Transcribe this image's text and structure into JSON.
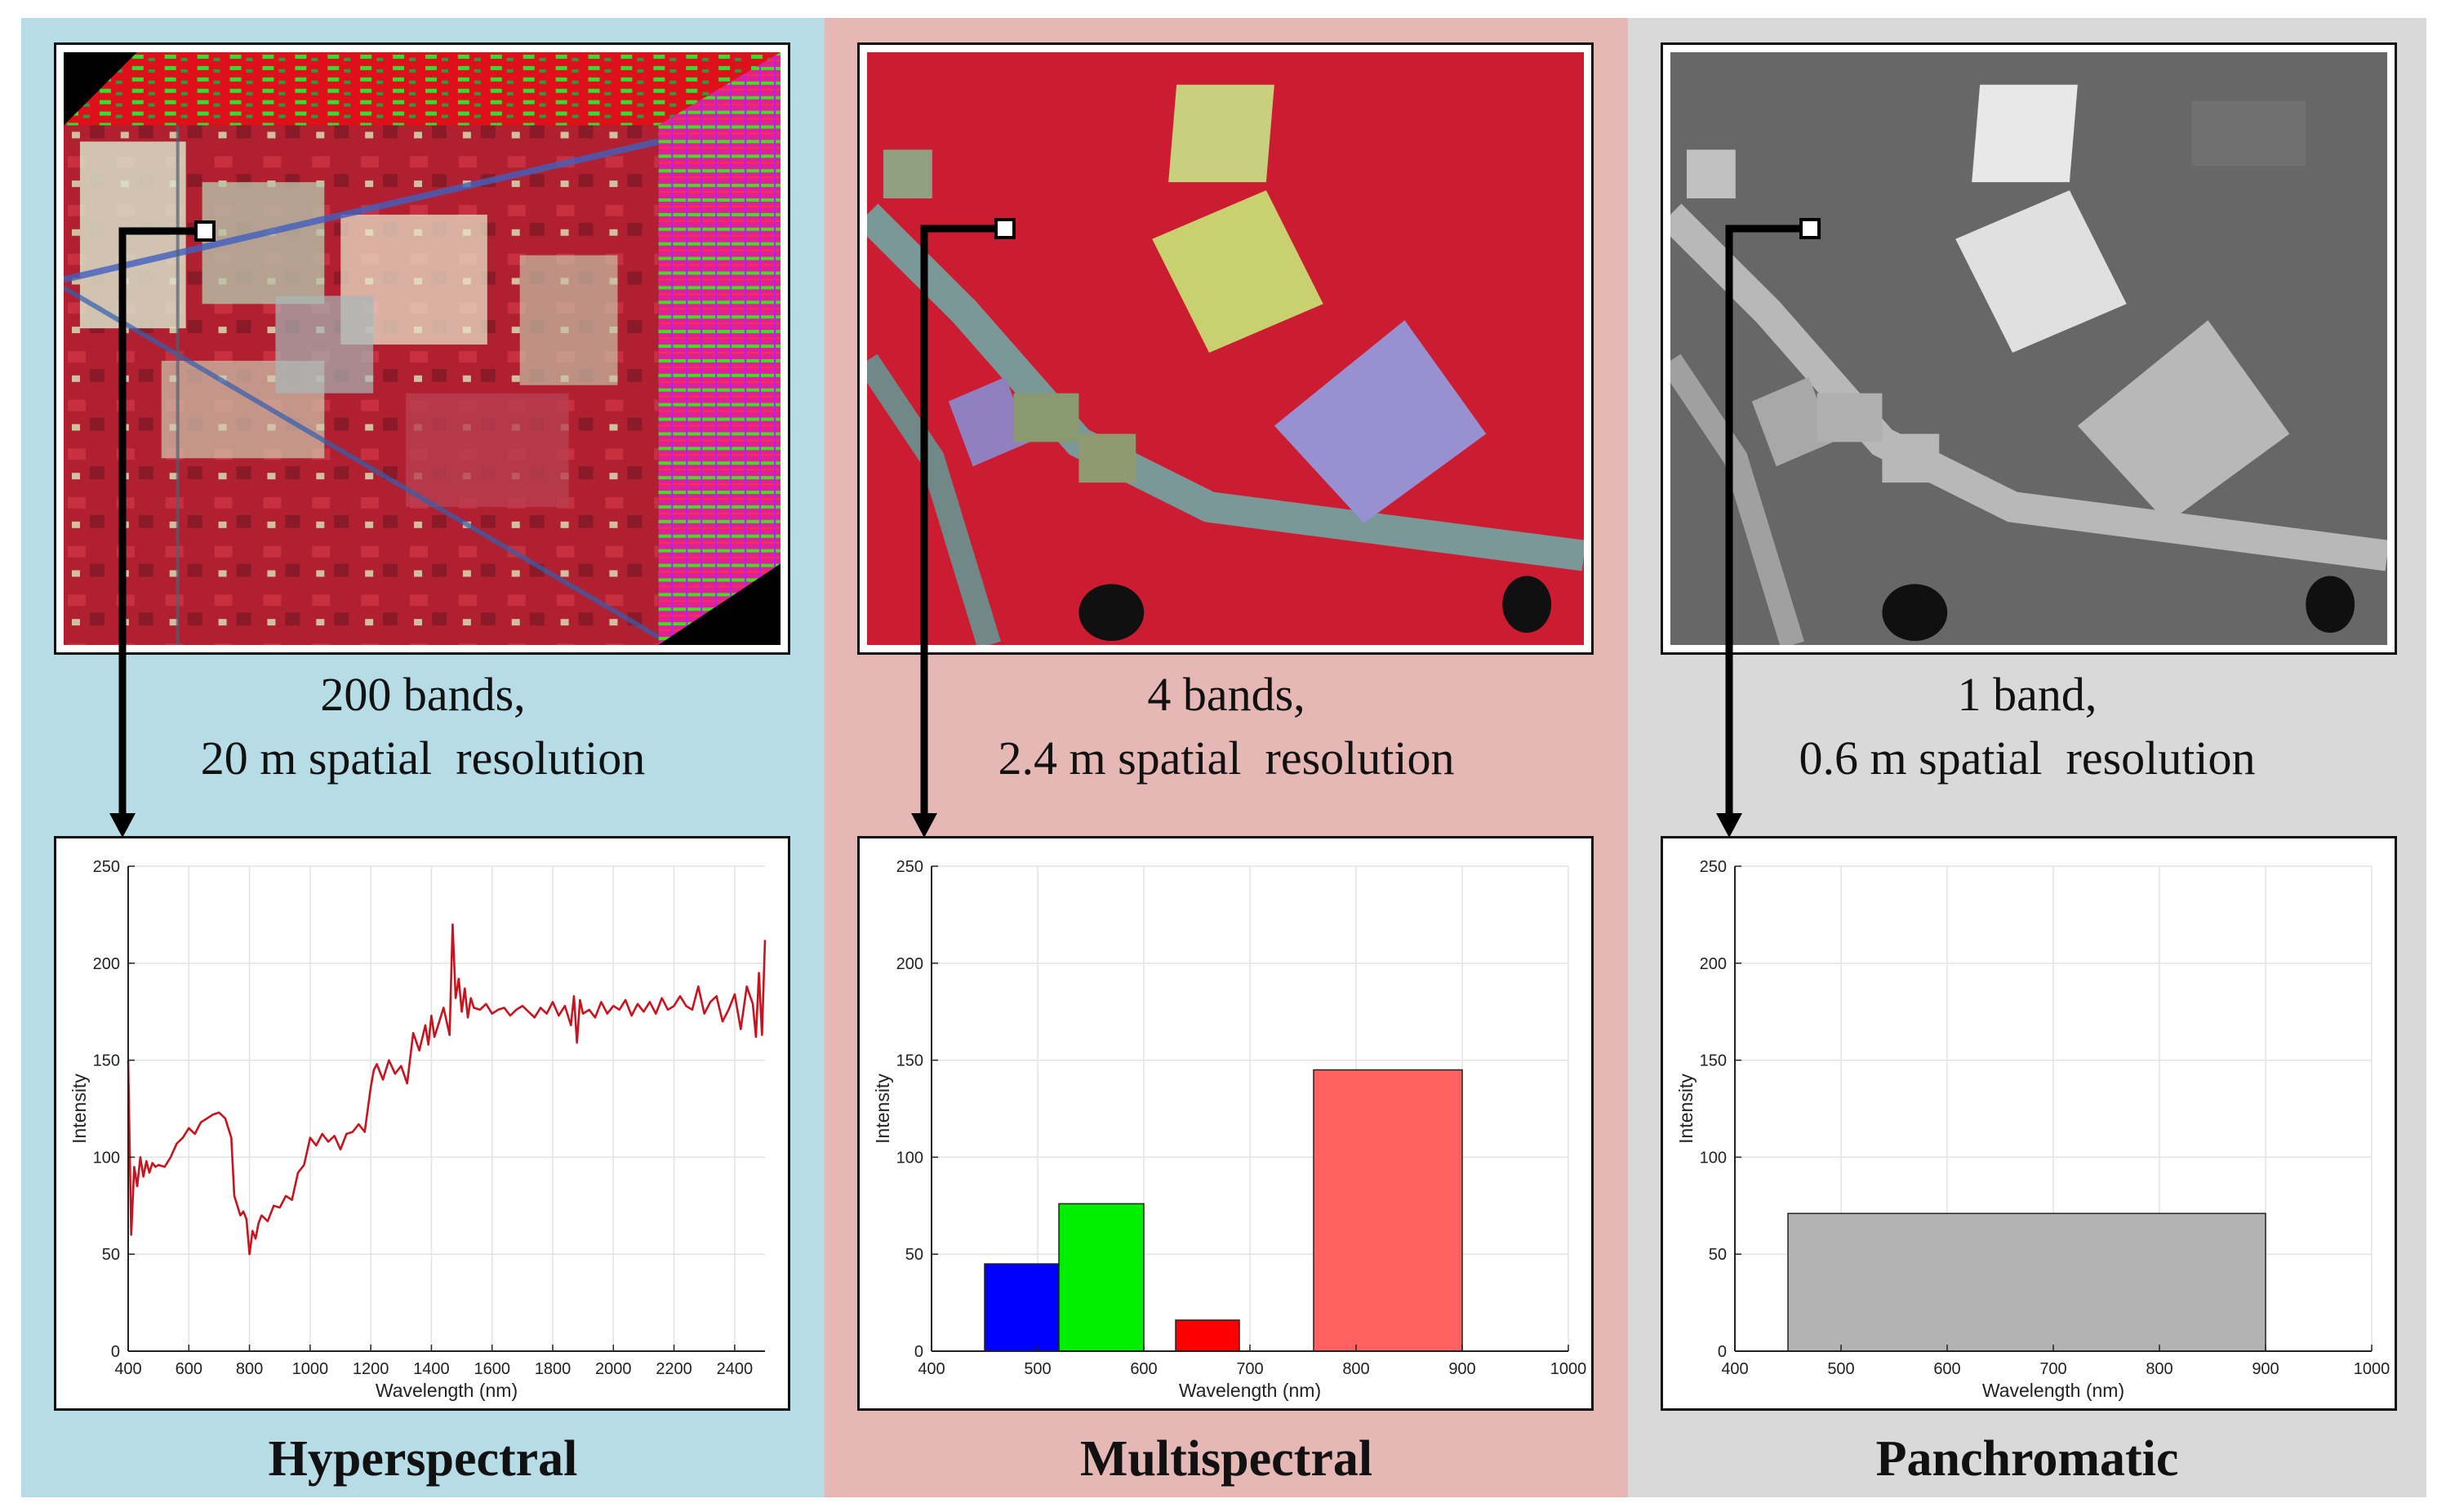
{
  "panels": [
    {
      "id": "hyperspectral",
      "background": "#b6dce6",
      "caption_line1": "200 bands,",
      "caption_line2": "20 m spatial  resolution",
      "title": "Hyperspectral",
      "image": "hyperspectral-cube-icon"
    },
    {
      "id": "multispectral",
      "background": "#e5b8b5",
      "caption_line1": "4 bands,",
      "caption_line2": "2.4 m spatial  resolution",
      "title": "Multispectral",
      "image": "false-color-aerial-icon"
    },
    {
      "id": "panchromatic",
      "background": "#d9d9d9",
      "caption_line1": "1 band,",
      "caption_line2": "0.6 m spatial  resolution",
      "title": "Panchromatic",
      "image": "grayscale-aerial-icon"
    }
  ],
  "chart_data": [
    {
      "type": "line",
      "title": "",
      "xlabel": "Wavelength (nm)",
      "ylabel": "Intensity",
      "xlim": [
        400,
        2500
      ],
      "ylim": [
        0,
        250
      ],
      "xticks": [
        400,
        600,
        800,
        1000,
        1200,
        1400,
        1600,
        1800,
        2000,
        2200,
        2400
      ],
      "yticks": [
        0,
        50,
        100,
        150,
        200,
        250
      ],
      "grid": true,
      "series": [
        {
          "name": "pixel spectrum",
          "color": "#c8141e",
          "x": [
            400,
            410,
            420,
            430,
            440,
            450,
            460,
            470,
            480,
            490,
            500,
            520,
            540,
            560,
            580,
            600,
            620,
            640,
            660,
            680,
            700,
            720,
            740,
            750,
            760,
            770,
            780,
            790,
            800,
            810,
            820,
            830,
            840,
            860,
            880,
            900,
            920,
            940,
            960,
            980,
            1000,
            1020,
            1040,
            1060,
            1080,
            1100,
            1120,
            1140,
            1160,
            1180,
            1200,
            1210,
            1220,
            1240,
            1260,
            1280,
            1300,
            1320,
            1340,
            1360,
            1380,
            1390,
            1400,
            1410,
            1420,
            1440,
            1460,
            1470,
            1480,
            1490,
            1500,
            1510,
            1520,
            1530,
            1540,
            1560,
            1580,
            1600,
            1620,
            1640,
            1660,
            1680,
            1700,
            1720,
            1740,
            1760,
            1780,
            1800,
            1820,
            1840,
            1860,
            1870,
            1880,
            1890,
            1900,
            1920,
            1940,
            1960,
            1980,
            2000,
            2020,
            2040,
            2060,
            2080,
            2100,
            2120,
            2140,
            2160,
            2180,
            2200,
            2220,
            2240,
            2260,
            2280,
            2300,
            2320,
            2340,
            2360,
            2380,
            2400,
            2420,
            2440,
            2460,
            2470,
            2480,
            2490,
            2500
          ],
          "values": [
            150,
            60,
            95,
            85,
            100,
            90,
            98,
            92,
            97,
            95,
            96,
            95,
            100,
            107,
            110,
            115,
            112,
            118,
            120,
            122,
            123,
            120,
            110,
            80,
            75,
            70,
            72,
            68,
            50,
            62,
            58,
            66,
            70,
            67,
            75,
            74,
            80,
            78,
            92,
            96,
            110,
            106,
            112,
            108,
            111,
            104,
            112,
            113,
            117,
            113,
            136,
            145,
            148,
            140,
            150,
            143,
            147,
            138,
            164,
            155,
            168,
            158,
            173,
            162,
            167,
            177,
            163,
            220,
            182,
            192,
            175,
            187,
            172,
            182,
            177,
            176,
            179,
            174,
            176,
            177,
            173,
            176,
            178,
            175,
            172,
            177,
            174,
            180,
            173,
            178,
            168,
            183,
            159,
            181,
            174,
            176,
            172,
            180,
            174,
            178,
            176,
            181,
            173,
            179,
            175,
            180,
            174,
            182,
            176,
            178,
            183,
            178,
            176,
            188,
            174,
            180,
            183,
            170,
            176,
            184,
            166,
            188,
            179,
            162,
            195,
            163,
            212
          ]
        }
      ]
    },
    {
      "type": "bar",
      "title": "",
      "xlabel": "Wavelength (nm)",
      "ylabel": "Intensity",
      "xlim": [
        400,
        1000
      ],
      "ylim": [
        0,
        250
      ],
      "xticks": [
        400,
        500,
        600,
        700,
        800,
        900,
        1000
      ],
      "yticks": [
        0,
        50,
        100,
        150,
        200,
        250
      ],
      "grid": true,
      "bars": [
        {
          "name": "blue band",
          "x0": 450,
          "x1": 520,
          "value": 45,
          "color": "#0000ff"
        },
        {
          "name": "green band",
          "x0": 520,
          "x1": 600,
          "value": 76,
          "color": "#00ee00"
        },
        {
          "name": "red band",
          "x0": 630,
          "x1": 690,
          "value": 16,
          "color": "#ff0000"
        },
        {
          "name": "nir band",
          "x0": 760,
          "x1": 900,
          "value": 145,
          "color": "#ff6060"
        }
      ]
    },
    {
      "type": "bar",
      "title": "",
      "xlabel": "Wavelength (nm)",
      "ylabel": "Intensity",
      "xlim": [
        400,
        1000
      ],
      "ylim": [
        0,
        250
      ],
      "xticks": [
        400,
        500,
        600,
        700,
        800,
        900,
        1000
      ],
      "yticks": [
        0,
        50,
        100,
        150,
        200,
        250
      ],
      "grid": true,
      "bars": [
        {
          "name": "panchromatic band",
          "x0": 450,
          "x1": 900,
          "value": 71,
          "color": "#b3b3b3"
        }
      ]
    }
  ]
}
